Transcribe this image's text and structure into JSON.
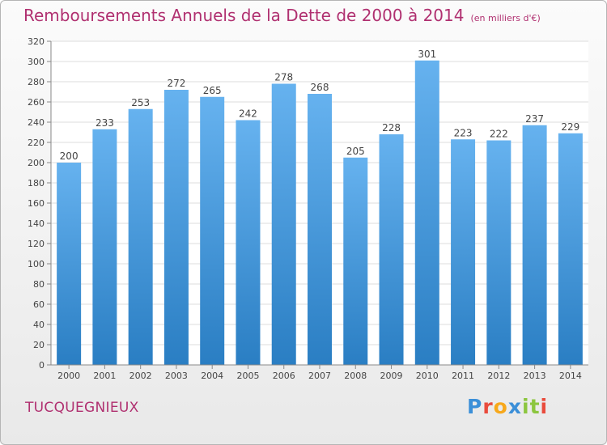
{
  "header": {
    "title": "Remboursements Annuels de la Dette de 2000 à 2014",
    "subtitle": "(en milliers d'€)"
  },
  "footer": {
    "commune": "TUCQUEGNIEUX",
    "brand": "Proxiti",
    "brand_colors": [
      "#3b8fd8",
      "#e94b3c",
      "#f7a81b",
      "#3b8fd8",
      "#8cc63f",
      "#8cc63f",
      "#e94b3c"
    ]
  },
  "colors": {
    "bar_top": "#66b2ef",
    "bar_bottom": "#2a7ec3",
    "grid": "#dddddd",
    "accent": "#b03070"
  },
  "chart_data": {
    "type": "bar",
    "title": "Remboursements Annuels de la Dette de 2000 à 2014",
    "subtitle": "(en milliers d'€)",
    "categories": [
      "2000",
      "2001",
      "2002",
      "2003",
      "2004",
      "2005",
      "2006",
      "2007",
      "2008",
      "2009",
      "2010",
      "2011",
      "2012",
      "2013",
      "2014"
    ],
    "values": [
      200,
      233,
      253,
      272,
      265,
      242,
      278,
      268,
      205,
      228,
      301,
      223,
      222,
      237,
      229
    ],
    "ylim": [
      0,
      320
    ],
    "yticks": [
      0,
      20,
      40,
      60,
      80,
      100,
      120,
      140,
      160,
      180,
      200,
      220,
      240,
      260,
      280,
      300,
      320
    ],
    "grid": true,
    "data_labels": true
  }
}
